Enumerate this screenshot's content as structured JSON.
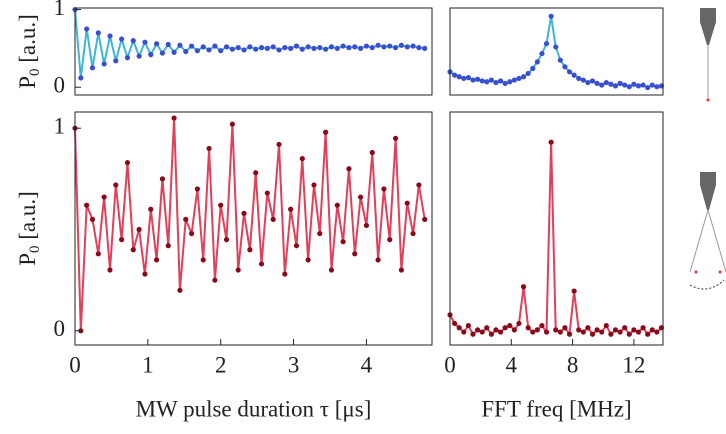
{
  "chart_data": [
    {
      "type": "line",
      "ylabel": "P",
      "ylabel_sub": "0",
      "ylabel_rest": " [a.u.]",
      "color": "#3fb4d6",
      "marker_color": "#3a4fd0",
      "xlim": [
        0,
        4.9
      ],
      "ylim": [
        -0.1,
        1.02
      ],
      "yticks": [
        0,
        1
      ],
      "x": [
        0,
        0.08,
        0.16,
        0.24,
        0.32,
        0.4,
        0.48,
        0.56,
        0.64,
        0.72,
        0.8,
        0.88,
        0.96,
        1.04,
        1.12,
        1.2,
        1.28,
        1.36,
        1.44,
        1.52,
        1.6,
        1.68,
        1.76,
        1.84,
        1.92,
        2,
        2.08,
        2.16,
        2.24,
        2.32,
        2.4,
        2.48,
        2.56,
        2.64,
        2.72,
        2.8,
        2.88,
        2.96,
        3.04,
        3.12,
        3.2,
        3.28,
        3.36,
        3.44,
        3.52,
        3.6,
        3.68,
        3.76,
        3.84,
        3.92,
        4,
        4.08,
        4.16,
        4.24,
        4.32,
        4.4,
        4.48,
        4.56,
        4.64,
        4.72,
        4.8
      ],
      "values": [
        1.0,
        0.12,
        0.75,
        0.25,
        0.7,
        0.3,
        0.66,
        0.34,
        0.62,
        0.38,
        0.6,
        0.4,
        0.58,
        0.42,
        0.56,
        0.44,
        0.55,
        0.45,
        0.54,
        0.46,
        0.53,
        0.47,
        0.52,
        0.48,
        0.53,
        0.47,
        0.52,
        0.49,
        0.51,
        0.48,
        0.52,
        0.49,
        0.51,
        0.5,
        0.52,
        0.48,
        0.51,
        0.5,
        0.53,
        0.49,
        0.52,
        0.5,
        0.51,
        0.49,
        0.52,
        0.5,
        0.53,
        0.51,
        0.52,
        0.5,
        0.53,
        0.51,
        0.54,
        0.52,
        0.53,
        0.51,
        0.54,
        0.52,
        0.53,
        0.51,
        0.5
      ]
    },
    {
      "type": "line",
      "color": "#3fb4d6",
      "marker_color": "#3a4fd0",
      "xlim": [
        0,
        13.9
      ],
      "ylim": [
        0,
        1.05
      ],
      "x": [
        0,
        0.3,
        0.6,
        0.9,
        1.2,
        1.5,
        1.8,
        2.1,
        2.4,
        2.7,
        3,
        3.3,
        3.6,
        3.9,
        4.2,
        4.5,
        4.8,
        5.1,
        5.4,
        5.7,
        6,
        6.3,
        6.6,
        6.9,
        7.2,
        7.5,
        7.8,
        8.1,
        8.4,
        8.7,
        9,
        9.3,
        9.6,
        9.9,
        10.2,
        10.5,
        10.8,
        11.1,
        11.4,
        11.7,
        12,
        12.3,
        12.6,
        12.9,
        13.2,
        13.5,
        13.8
      ],
      "values": [
        0.28,
        0.24,
        0.22,
        0.2,
        0.21,
        0.18,
        0.19,
        0.17,
        0.16,
        0.18,
        0.15,
        0.17,
        0.14,
        0.16,
        0.18,
        0.2,
        0.22,
        0.26,
        0.32,
        0.4,
        0.5,
        0.62,
        0.95,
        0.58,
        0.42,
        0.34,
        0.28,
        0.24,
        0.2,
        0.18,
        0.15,
        0.17,
        0.14,
        0.12,
        0.15,
        0.13,
        0.11,
        0.14,
        0.12,
        0.1,
        0.13,
        0.11,
        0.12,
        0.09,
        0.12,
        0.1,
        0.11
      ]
    },
    {
      "type": "line",
      "ylabel": "P",
      "ylabel_sub": "0",
      "ylabel_rest": " [a.u.]",
      "xlabel": "MW pulse duration τ [μs]",
      "color": "#e0405a",
      "marker_color": "#8b0a1a",
      "xlim": [
        0,
        4.9
      ],
      "ylim": [
        -0.07,
        1.08
      ],
      "xticks": [
        0,
        1,
        2,
        3,
        4
      ],
      "yticks": [
        0,
        1
      ],
      "x": [
        0,
        0.08,
        0.16,
        0.24,
        0.32,
        0.4,
        0.48,
        0.56,
        0.64,
        0.72,
        0.8,
        0.88,
        0.96,
        1.04,
        1.12,
        1.2,
        1.28,
        1.36,
        1.44,
        1.52,
        1.6,
        1.68,
        1.76,
        1.84,
        1.92,
        2,
        2.08,
        2.16,
        2.24,
        2.32,
        2.4,
        2.48,
        2.56,
        2.64,
        2.72,
        2.8,
        2.88,
        2.96,
        3.04,
        3.12,
        3.2,
        3.28,
        3.36,
        3.44,
        3.52,
        3.6,
        3.68,
        3.76,
        3.84,
        3.92,
        4,
        4.08,
        4.16,
        4.24,
        4.32,
        4.4,
        4.48,
        4.56,
        4.64,
        4.72,
        4.8
      ],
      "values": [
        1.0,
        0.0,
        0.62,
        0.55,
        0.38,
        0.66,
        0.3,
        0.72,
        0.45,
        0.83,
        0.4,
        0.5,
        0.28,
        0.6,
        0.35,
        0.75,
        0.42,
        1.05,
        0.2,
        0.55,
        0.48,
        0.7,
        0.35,
        0.9,
        0.25,
        0.62,
        0.45,
        1.02,
        0.3,
        0.58,
        0.4,
        0.78,
        0.33,
        0.68,
        0.55,
        0.92,
        0.28,
        0.6,
        0.42,
        0.85,
        0.35,
        0.72,
        0.48,
        0.98,
        0.3,
        0.62,
        0.44,
        0.8,
        0.38,
        0.66,
        0.52,
        0.88,
        0.35,
        0.7,
        0.45,
        0.95,
        0.3,
        0.63,
        0.48,
        0.72,
        0.55
      ]
    },
    {
      "type": "line",
      "xlabel": "FFT freq [MHz]",
      "color": "#e0405a",
      "marker_color": "#8b0a1a",
      "xlim": [
        0,
        13.9
      ],
      "ylim": [
        0,
        1.08
      ],
      "xticks": [
        0,
        4,
        8,
        12
      ],
      "x": [
        0,
        0.3,
        0.6,
        0.9,
        1.2,
        1.5,
        1.8,
        2.1,
        2.4,
        2.7,
        3,
        3.3,
        3.6,
        3.9,
        4.2,
        4.5,
        4.8,
        5.1,
        5.4,
        5.7,
        6,
        6.3,
        6.6,
        6.9,
        7.2,
        7.5,
        7.8,
        8.1,
        8.4,
        8.7,
        9,
        9.3,
        9.6,
        9.9,
        10.2,
        10.5,
        10.8,
        11.1,
        11.4,
        11.7,
        12,
        12.3,
        12.6,
        12.9,
        13.2,
        13.5,
        13.8
      ],
      "values": [
        0.14,
        0.1,
        0.08,
        0.06,
        0.09,
        0.05,
        0.07,
        0.06,
        0.08,
        0.05,
        0.07,
        0.06,
        0.08,
        0.09,
        0.07,
        0.1,
        0.27,
        0.08,
        0.06,
        0.07,
        0.09,
        0.06,
        0.94,
        0.07,
        0.06,
        0.08,
        0.05,
        0.25,
        0.07,
        0.06,
        0.08,
        0.05,
        0.07,
        0.06,
        0.09,
        0.05,
        0.07,
        0.06,
        0.08,
        0.05,
        0.07,
        0.06,
        0.08,
        0.05,
        0.07,
        0.06,
        0.08
      ]
    }
  ]
}
